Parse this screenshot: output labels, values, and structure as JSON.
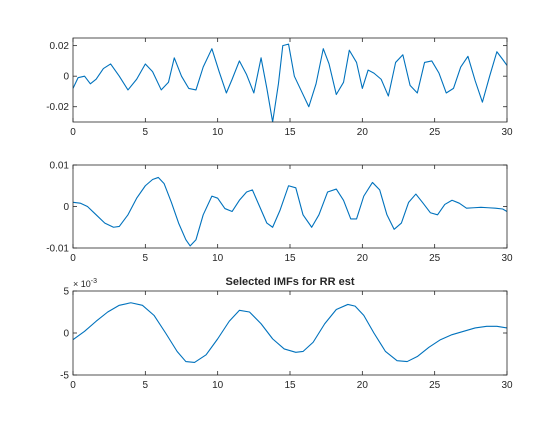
{
  "figure": {
    "background": "#ffffff",
    "axis_color": "#262626",
    "line_color": "#0072BD"
  },
  "chart_data": [
    {
      "type": "line",
      "title": "",
      "xlabel": "",
      "ylabel": "",
      "xlim": [
        0,
        30
      ],
      "ylim": [
        -0.03,
        0.025
      ],
      "xticks": [
        0,
        5,
        10,
        15,
        20,
        25,
        30
      ],
      "xtick_labels": [
        "0",
        "5",
        "10",
        "15",
        "20",
        "25",
        "30"
      ],
      "yticks": [
        -0.02,
        0,
        0.02
      ],
      "ytick_labels": [
        "-0.02",
        "0",
        "0.02"
      ],
      "grid": false,
      "series": [
        {
          "color": "#0072BD",
          "x": [
            0,
            0.35,
            0.8,
            1.2,
            1.6,
            2.1,
            2.6,
            3.2,
            3.8,
            4.4,
            5.0,
            5.5,
            6.1,
            6.6,
            7.0,
            7.5,
            8.0,
            8.5,
            9.0,
            9.6,
            10.1,
            10.6,
            11.0,
            11.5,
            12.0,
            12.5,
            13.0,
            13.4,
            13.8,
            14.2,
            14.5,
            14.9,
            15.3,
            15.8,
            16.3,
            16.8,
            17.3,
            17.7,
            18.2,
            18.7,
            19.1,
            19.6,
            20.0,
            20.4,
            20.8,
            21.3,
            21.8,
            22.3,
            22.8,
            23.3,
            23.8,
            24.3,
            24.8,
            25.3,
            25.8,
            26.3,
            26.8,
            27.3,
            27.8,
            28.3,
            28.8,
            29.3,
            29.7,
            30.0
          ],
          "y": [
            -0.008,
            -0.001,
            0.0,
            -0.005,
            -0.002,
            0.005,
            0.008,
            0.0,
            -0.009,
            -0.002,
            0.008,
            0.003,
            -0.009,
            -0.004,
            0.012,
            0.0,
            -0.008,
            -0.009,
            0.006,
            0.018,
            0.003,
            -0.011,
            -0.002,
            0.01,
            0.001,
            -0.011,
            0.012,
            -0.008,
            -0.03,
            -0.005,
            0.02,
            0.021,
            0.0,
            -0.01,
            -0.02,
            -0.005,
            0.018,
            0.008,
            -0.012,
            -0.004,
            0.017,
            0.009,
            -0.008,
            0.004,
            0.002,
            -0.002,
            -0.013,
            0.009,
            0.014,
            -0.006,
            -0.011,
            0.009,
            0.01,
            0.002,
            -0.011,
            -0.008,
            0.006,
            0.013,
            -0.003,
            -0.017,
            0.0,
            0.016,
            0.011,
            0.007
          ]
        }
      ]
    },
    {
      "type": "line",
      "title": "",
      "xlabel": "",
      "ylabel": "",
      "xlim": [
        0,
        30
      ],
      "ylim": [
        -0.01,
        0.01
      ],
      "xticks": [
        0,
        5,
        10,
        15,
        20,
        25,
        30
      ],
      "xtick_labels": [
        "0",
        "5",
        "10",
        "15",
        "20",
        "25",
        "30"
      ],
      "yticks": [
        -0.01,
        0,
        0.01
      ],
      "ytick_labels": [
        "-0.01",
        "0",
        "0.01"
      ],
      "grid": false,
      "series": [
        {
          "color": "#0072BD",
          "x": [
            0,
            0.5,
            1.0,
            1.6,
            2.2,
            2.8,
            3.2,
            3.8,
            4.4,
            5.0,
            5.5,
            5.9,
            6.3,
            6.8,
            7.3,
            7.8,
            8.1,
            8.5,
            9.0,
            9.6,
            10.0,
            10.5,
            11.0,
            11.5,
            12.0,
            12.4,
            12.9,
            13.4,
            13.8,
            14.3,
            14.9,
            15.4,
            15.9,
            16.5,
            17.0,
            17.6,
            18.2,
            18.7,
            19.2,
            19.6,
            20.1,
            20.7,
            21.2,
            21.7,
            22.2,
            22.7,
            23.2,
            23.7,
            24.2,
            24.7,
            25.2,
            25.7,
            26.2,
            26.7,
            27.2,
            27.7,
            28.2,
            28.7,
            29.2,
            29.7,
            30.0
          ],
          "y": [
            0.001,
            0.0008,
            0.0,
            -0.002,
            -0.004,
            -0.005,
            -0.0048,
            -0.002,
            0.002,
            0.005,
            0.0065,
            0.007,
            0.0055,
            0.001,
            -0.004,
            -0.008,
            -0.0095,
            -0.008,
            -0.002,
            0.0025,
            0.002,
            -0.0005,
            -0.0012,
            0.0015,
            0.0035,
            0.004,
            0.0,
            -0.004,
            -0.005,
            -0.001,
            0.005,
            0.0045,
            -0.002,
            -0.005,
            -0.002,
            0.0035,
            0.0042,
            0.0015,
            -0.003,
            -0.003,
            0.0025,
            0.0058,
            0.004,
            -0.002,
            -0.0055,
            -0.004,
            0.001,
            0.003,
            0.0008,
            -0.0015,
            -0.002,
            0.0005,
            0.0015,
            0.0008,
            -0.0004,
            -0.0003,
            -0.0002,
            -0.0003,
            -0.0004,
            -0.0006,
            -0.0012
          ]
        }
      ]
    },
    {
      "type": "line",
      "title": "Selected IMFs for RR est",
      "xlabel": "",
      "ylabel": "",
      "xlim": [
        0,
        30
      ],
      "ylim": [
        -0.005,
        0.005
      ],
      "xticks": [
        0,
        5,
        10,
        15,
        20,
        25,
        30
      ],
      "xtick_labels": [
        "0",
        "5",
        "10",
        "15",
        "20",
        "25",
        "30"
      ],
      "yticks": [
        -0.005,
        0,
        0.005
      ],
      "ytick_labels": [
        "-5",
        "0",
        "5"
      ],
      "y_exponent_label": "× 10",
      "y_exponent_power": "-3",
      "grid": false,
      "series": [
        {
          "color": "#0072BD",
          "x": [
            0,
            0.8,
            1.6,
            2.4,
            3.2,
            4.0,
            4.8,
            5.6,
            6.4,
            7.2,
            7.8,
            8.4,
            9.2,
            10.0,
            10.8,
            11.5,
            12.2,
            13.0,
            13.8,
            14.6,
            15.4,
            15.9,
            16.6,
            17.4,
            18.2,
            19.0,
            19.5,
            20.1,
            20.8,
            21.6,
            22.4,
            23.1,
            23.8,
            24.6,
            25.4,
            26.2,
            27.0,
            27.8,
            28.6,
            29.3,
            30.0
          ],
          "y": [
            -0.0008,
            0.0002,
            0.0014,
            0.0025,
            0.0033,
            0.0036,
            0.0033,
            0.0021,
            0.0,
            -0.0022,
            -0.0034,
            -0.0035,
            -0.0026,
            -0.0007,
            0.0014,
            0.0027,
            0.0025,
            0.0011,
            -0.0007,
            -0.0019,
            -0.0023,
            -0.0022,
            -0.0011,
            0.0011,
            0.0028,
            0.0034,
            0.0032,
            0.0021,
            0.0,
            -0.0022,
            -0.0033,
            -0.0034,
            -0.0028,
            -0.0017,
            -0.0008,
            -0.0002,
            0.0002,
            0.0006,
            0.0008,
            0.0008,
            0.0006
          ]
        }
      ]
    }
  ]
}
